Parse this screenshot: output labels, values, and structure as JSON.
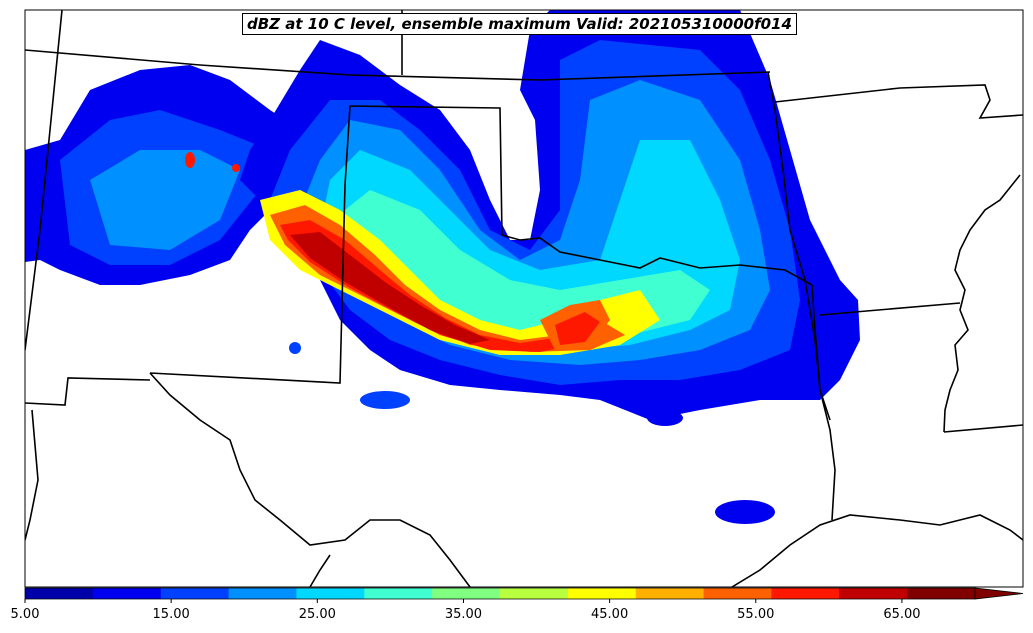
{
  "title": "dBZ at 10 C level, ensemble maximum Valid: 202105310000f014",
  "colorbar": {
    "min": 5,
    "max": 70,
    "step": 5,
    "extend": "max",
    "tick_labels": [
      "5.00",
      "15.00",
      "25.00",
      "35.00",
      "45.00",
      "55.00",
      "65.00"
    ],
    "colors": [
      "#0000aa",
      "#0000f0",
      "#0040ff",
      "#0090ff",
      "#00d8ff",
      "#40ffd0",
      "#80ff80",
      "#b8ff40",
      "#ffff00",
      "#ffb000",
      "#ff6000",
      "#ff1800",
      "#c00000",
      "#800000"
    ]
  },
  "map": {
    "field": "dBZ at 10 C level",
    "border_color": "#000000"
  }
}
